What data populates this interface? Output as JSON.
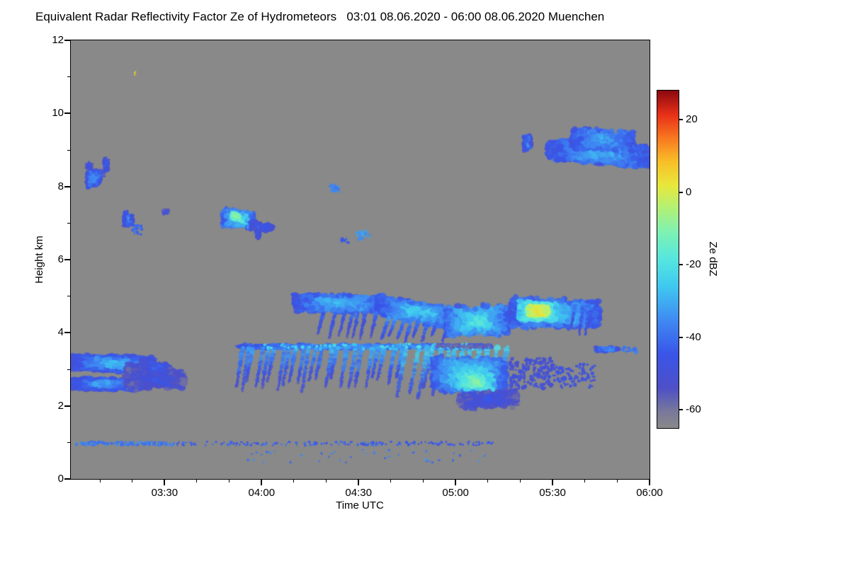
{
  "chart_data": {
    "type": "heatmap",
    "title": "Equivalent Radar Reflectivity Factor Ze of Hydrometeors   03:01 08.06.2020 - 06:00 08.06.2020 Muenchen",
    "site": "Muenchen",
    "date": "08.06.2020",
    "time_start": "03:01",
    "time_end": "06:00",
    "xlabel": "Time UTC",
    "ylabel": "Height km",
    "x_domain_hours": [
      3.0167,
      6.0
    ],
    "ylim": [
      0,
      12
    ],
    "y_ticks": [
      0,
      2,
      4,
      6,
      8,
      10,
      12
    ],
    "x_ticks": [
      {
        "h": 3.5,
        "label": "03:30"
      },
      {
        "h": 4.0,
        "label": "04:00"
      },
      {
        "h": 4.5,
        "label": "04:30"
      },
      {
        "h": 5.0,
        "label": "05:00"
      },
      {
        "h": 5.5,
        "label": "05:30"
      },
      {
        "h": 6.0,
        "label": "06:00"
      }
    ],
    "background_dbz": -65,
    "background_color": "#898989",
    "colorbar": {
      "label": "Ze dBZ",
      "vmin": -65,
      "vmax": 28,
      "ticks": [
        20,
        0,
        -20,
        -40,
        -60
      ]
    },
    "colormap_stops": [
      [
        0.0,
        [
          137,
          137,
          137
        ]
      ],
      [
        0.05,
        [
          121,
          121,
          155
        ]
      ],
      [
        0.12,
        [
          78,
          80,
          200
        ]
      ],
      [
        0.22,
        [
          58,
          85,
          232
        ]
      ],
      [
        0.32,
        [
          63,
          138,
          242
        ]
      ],
      [
        0.42,
        [
          63,
          200,
          240
        ]
      ],
      [
        0.5,
        [
          85,
          230,
          224
        ]
      ],
      [
        0.58,
        [
          125,
          242,
          180
        ]
      ],
      [
        0.66,
        [
          184,
          240,
          112
        ]
      ],
      [
        0.72,
        [
          232,
          232,
          60
        ]
      ],
      [
        0.79,
        [
          248,
          192,
          40
        ]
      ],
      [
        0.86,
        [
          248,
          120,
          32
        ]
      ],
      [
        0.93,
        [
          232,
          48,
          24
        ]
      ],
      [
        1.0,
        [
          140,
          10,
          16
        ]
      ]
    ],
    "features": [
      {
        "kind": "layer",
        "t0": 3.02,
        "t1": 3.44,
        "zc0": 3.2,
        "zc1": 3.12,
        "th0": 0.45,
        "th1": 0.5,
        "core": -27,
        "edge": -50,
        "n": 1100,
        "rx": 5,
        "ry": 3
      },
      {
        "kind": "layer",
        "t0": 3.02,
        "t1": 3.36,
        "zc0": 2.62,
        "zc1": 2.58,
        "th0": 0.32,
        "th1": 0.35,
        "core": -30,
        "edge": -50,
        "n": 650,
        "rx": 5,
        "ry": 3
      },
      {
        "kind": "layer",
        "t0": 3.3,
        "t1": 3.6,
        "zc0": 2.8,
        "zc1": 2.72,
        "th0": 0.85,
        "th1": 0.5,
        "core": -46,
        "edge": -56,
        "n": 650,
        "rx": 5,
        "ry": 3
      },
      {
        "kind": "layer",
        "t0": 3.38,
        "t1": 3.53,
        "zc0": 3.1,
        "zc1": 3.0,
        "th0": 0.4,
        "th1": 0.3,
        "core": -41,
        "edge": -54,
        "n": 260,
        "rx": 4,
        "ry": 3
      },
      {
        "kind": "layer",
        "t0": 3.1,
        "t1": 3.17,
        "zc0": 8.2,
        "zc1": 8.25,
        "th0": 0.55,
        "th1": 0.4,
        "core": -30,
        "edge": -48,
        "n": 240,
        "rx": 3,
        "ry": 3
      },
      {
        "kind": "layer",
        "t0": 3.095,
        "t1": 3.125,
        "zc0": 8.55,
        "zc1": 8.6,
        "th0": 0.2,
        "th1": 0.15,
        "core": -44,
        "edge": -54,
        "n": 50,
        "rx": 2,
        "ry": 2
      },
      {
        "kind": "layer",
        "t0": 3.185,
        "t1": 3.212,
        "zc0": 8.55,
        "zc1": 8.62,
        "th0": 0.55,
        "th1": 0.4,
        "core": -42,
        "edge": -52,
        "n": 80,
        "rx": 2,
        "ry": 2
      },
      {
        "kind": "layer",
        "t0": 3.29,
        "t1": 3.335,
        "zc0": 7.12,
        "zc1": 7.08,
        "th0": 0.5,
        "th1": 0.32,
        "core": -35,
        "edge": -50,
        "n": 130,
        "rx": 2.5,
        "ry": 2.5
      },
      {
        "kind": "dots",
        "t0": 3.33,
        "t1": 3.385,
        "z0": 6.68,
        "z1": 6.95,
        "n": 26,
        "dbz": -42,
        "size": 1.7,
        "jitter": 6
      },
      {
        "kind": "layer",
        "t0": 3.49,
        "t1": 3.52,
        "zc0": 7.3,
        "zc1": 7.3,
        "th0": 0.18,
        "th1": 0.12,
        "core": -46,
        "edge": -54,
        "n": 28,
        "rx": 2,
        "ry": 2
      },
      {
        "kind": "layer",
        "t0": 3.8,
        "t1": 3.96,
        "zc0": 7.15,
        "zc1": 7.08,
        "th0": 0.55,
        "th1": 0.45,
        "core": -15,
        "edge": -44,
        "n": 480,
        "rx": 3.5,
        "ry": 3
      },
      {
        "kind": "layer",
        "t0": 3.845,
        "t1": 3.89,
        "zc0": 7.2,
        "zc1": 7.15,
        "th0": 0.26,
        "th1": 0.2,
        "core": -8,
        "edge": -18,
        "n": 110,
        "rx": 2.5,
        "ry": 2
      },
      {
        "kind": "layer",
        "t0": 3.94,
        "t1": 4.06,
        "zc0": 6.95,
        "zc1": 6.85,
        "th0": 0.35,
        "th1": 0.2,
        "core": -40,
        "edge": -52,
        "n": 150,
        "rx": 3,
        "ry": 2.5
      },
      {
        "kind": "layer",
        "t0": 3.965,
        "t1": 3.995,
        "zc0": 6.78,
        "zc1": 6.78,
        "th0": 0.5,
        "th1": 0.4,
        "core": -42,
        "edge": -52,
        "n": 60,
        "rx": 2,
        "ry": 2.5
      },
      {
        "kind": "dots",
        "t0": 4.35,
        "t1": 4.405,
        "z0": 7.85,
        "z1": 8.05,
        "n": 28,
        "dbz": -36,
        "size": 1.8,
        "jitter": 6
      },
      {
        "kind": "dots",
        "t0": 4.41,
        "t1": 4.45,
        "z0": 6.45,
        "z1": 6.6,
        "n": 14,
        "dbz": -44,
        "size": 1.6,
        "jitter": 5
      },
      {
        "kind": "dots",
        "t0": 4.49,
        "t1": 4.56,
        "z0": 6.55,
        "z1": 6.8,
        "n": 30,
        "dbz": -34,
        "size": 1.8,
        "jitter": 6
      },
      {
        "kind": "layer",
        "t0": 3.88,
        "t1": 5.18,
        "zc0": 3.62,
        "zc1": 3.62,
        "th0": 0.15,
        "th1": 0.15,
        "core": -30,
        "edge": -46,
        "n": 850,
        "rx": 4,
        "ry": 2
      },
      {
        "kind": "streaks",
        "t0": 3.88,
        "t1": 4.34,
        "ztop": 3.58,
        "zbot": 2.35,
        "nstreaks": 13,
        "slant": -0.035,
        "core": -33,
        "fade": -54,
        "width": 3.2
      },
      {
        "kind": "streaks",
        "t0": 4.34,
        "t1": 4.74,
        "ztop": 3.58,
        "zbot": 2.45,
        "nstreaks": 10,
        "slant": -0.035,
        "core": -30,
        "fade": -53,
        "width": 3.4
      },
      {
        "kind": "streaks",
        "t0": 4.74,
        "t1": 5.28,
        "ztop": 3.62,
        "zbot": 2.05,
        "nstreaks": 13,
        "slant": -0.05,
        "core": -24,
        "fade": -52,
        "width": 3.8
      },
      {
        "kind": "layer",
        "t0": 4.88,
        "t1": 5.26,
        "zc0": 2.9,
        "zc1": 2.75,
        "th0": 1.0,
        "th1": 1.15,
        "core": -17,
        "edge": -44,
        "n": 1300,
        "rx": 4,
        "ry": 3.5
      },
      {
        "kind": "layer",
        "t0": 5.0,
        "t1": 5.2,
        "zc0": 2.72,
        "zc1": 2.6,
        "th0": 0.55,
        "th1": 0.6,
        "core": -9,
        "edge": -28,
        "n": 280,
        "rx": 3.5,
        "ry": 3
      },
      {
        "kind": "layer",
        "t0": 5.02,
        "t1": 5.32,
        "zc0": 2.15,
        "zc1": 2.2,
        "th0": 0.5,
        "th1": 0.55,
        "core": -46,
        "edge": -56,
        "n": 420,
        "rx": 4,
        "ry": 3
      },
      {
        "kind": "layer",
        "t0": 4.17,
        "t1": 4.64,
        "zc0": 4.82,
        "zc1": 4.78,
        "th0": 0.5,
        "th1": 0.55,
        "core": -26,
        "edge": -46,
        "n": 950,
        "rx": 4.5,
        "ry": 3
      },
      {
        "kind": "layer",
        "t0": 4.6,
        "t1": 5.02,
        "zc0": 4.75,
        "zc1": 4.35,
        "th0": 0.6,
        "th1": 0.7,
        "core": -22,
        "edge": -45,
        "n": 1000,
        "rx": 4.5,
        "ry": 3
      },
      {
        "kind": "layer",
        "t0": 4.95,
        "t1": 5.27,
        "zc0": 4.3,
        "zc1": 4.35,
        "th0": 0.85,
        "th1": 0.9,
        "core": -18,
        "edge": -42,
        "n": 850,
        "rx": 4,
        "ry": 3.5
      },
      {
        "kind": "streaks",
        "t0": 4.3,
        "t1": 4.62,
        "ztop": 4.55,
        "zbot": 3.75,
        "nstreaks": 7,
        "slant": -0.03,
        "core": -42,
        "fade": -54,
        "width": 2.6
      },
      {
        "kind": "streaks",
        "t0": 4.62,
        "t1": 5.0,
        "ztop": 4.45,
        "zbot": 3.7,
        "nstreaks": 8,
        "slant": -0.04,
        "core": -34,
        "fade": -50,
        "width": 3
      },
      {
        "kind": "layer",
        "t0": 5.28,
        "t1": 5.74,
        "zc0": 4.55,
        "zc1": 4.5,
        "th0": 0.9,
        "th1": 0.8,
        "core": -24,
        "edge": -45,
        "n": 1150,
        "rx": 4.5,
        "ry": 3.5
      },
      {
        "kind": "layer",
        "t0": 5.33,
        "t1": 5.52,
        "zc0": 4.6,
        "zc1": 4.55,
        "th0": 0.6,
        "th1": 0.55,
        "core": -8,
        "edge": -26,
        "n": 650,
        "rx": 4,
        "ry": 3
      },
      {
        "kind": "layer",
        "t0": 5.37,
        "t1": 5.48,
        "zc0": 4.6,
        "zc1": 4.58,
        "th0": 0.35,
        "th1": 0.3,
        "core": 6,
        "edge": -6,
        "n": 240,
        "rx": 3.5,
        "ry": 2.8
      },
      {
        "kind": "streaks",
        "t0": 5.6,
        "t1": 5.73,
        "ztop": 4.75,
        "zbot": 3.9,
        "nstreaks": 4,
        "slant": -0.02,
        "core": -38,
        "fade": -52,
        "width": 2.6
      },
      {
        "kind": "dots",
        "t0": 5.28,
        "t1": 5.5,
        "z0": 2.45,
        "z1": 3.3,
        "n": 170,
        "dbz": -50,
        "size": 2.2,
        "jitter": 6
      },
      {
        "kind": "dots",
        "t0": 5.5,
        "t1": 5.72,
        "z0": 2.5,
        "z1": 3.15,
        "n": 80,
        "dbz": -48,
        "size": 2.2,
        "jitter": 6
      },
      {
        "kind": "layer",
        "t0": 5.72,
        "t1": 5.84,
        "zc0": 3.55,
        "zc1": 3.55,
        "th0": 0.16,
        "th1": 0.14,
        "core": -34,
        "edge": -48,
        "n": 110,
        "rx": 3,
        "ry": 2
      },
      {
        "kind": "dots",
        "t0": 5.86,
        "t1": 5.94,
        "z0": 3.45,
        "z1": 3.62,
        "n": 24,
        "dbz": -38,
        "size": 1.8,
        "jitter": 6
      },
      {
        "kind": "layer",
        "t0": 5.35,
        "t1": 5.39,
        "zc0": 9.2,
        "zc1": 9.2,
        "th0": 0.5,
        "th1": 0.45,
        "core": -34,
        "edge": -50,
        "n": 100,
        "rx": 2.5,
        "ry": 3
      },
      {
        "kind": "dots",
        "t0": 5.46,
        "t1": 5.49,
        "z0": 8.8,
        "z1": 8.95,
        "n": 10,
        "dbz": -45,
        "size": 1.5,
        "jitter": 4
      },
      {
        "kind": "layer",
        "t0": 5.48,
        "t1": 6.0,
        "zc0": 9.0,
        "zc1": 8.82,
        "th0": 0.6,
        "th1": 0.7,
        "core": -28,
        "edge": -46,
        "n": 1050,
        "rx": 5,
        "ry": 3.5
      },
      {
        "kind": "layer",
        "t0": 5.6,
        "t1": 5.92,
        "zc0": 9.3,
        "zc1": 9.25,
        "th0": 0.7,
        "th1": 0.6,
        "core": -30,
        "edge": -45,
        "n": 480,
        "rx": 4,
        "ry": 3
      },
      {
        "kind": "dots",
        "t0": 3.04,
        "t1": 3.55,
        "z0": 0.92,
        "z1": 1.02,
        "n": 150,
        "dbz": -38,
        "size": 1.6,
        "jitter": 8
      },
      {
        "kind": "dots",
        "t0": 3.55,
        "t1": 5.2,
        "z0": 0.92,
        "z1": 1.02,
        "n": 190,
        "dbz": -43,
        "size": 1.5,
        "jitter": 8
      },
      {
        "kind": "dots",
        "t0": 3.9,
        "t1": 5.15,
        "z0": 0.45,
        "z1": 0.8,
        "n": 42,
        "dbz": -38,
        "size": 1.5,
        "jitter": 10
      },
      {
        "kind": "dots",
        "t0": 3.335,
        "t1": 3.352,
        "z0": 11.05,
        "z1": 11.15,
        "n": 3,
        "dbz": 6,
        "size": 1.3,
        "jitter": 2
      },
      {
        "kind": "dots",
        "t0": 4.0,
        "t1": 5.15,
        "z0": 3.55,
        "z1": 3.7,
        "n": 55,
        "dbz": -23,
        "size": 2,
        "jitter": 8
      },
      {
        "kind": "dots",
        "t0": 4.9,
        "t1": 5.18,
        "z0": 3.58,
        "z1": 3.68,
        "n": 110,
        "dbz": -57,
        "size": 1.8,
        "jitter": 4
      }
    ]
  }
}
